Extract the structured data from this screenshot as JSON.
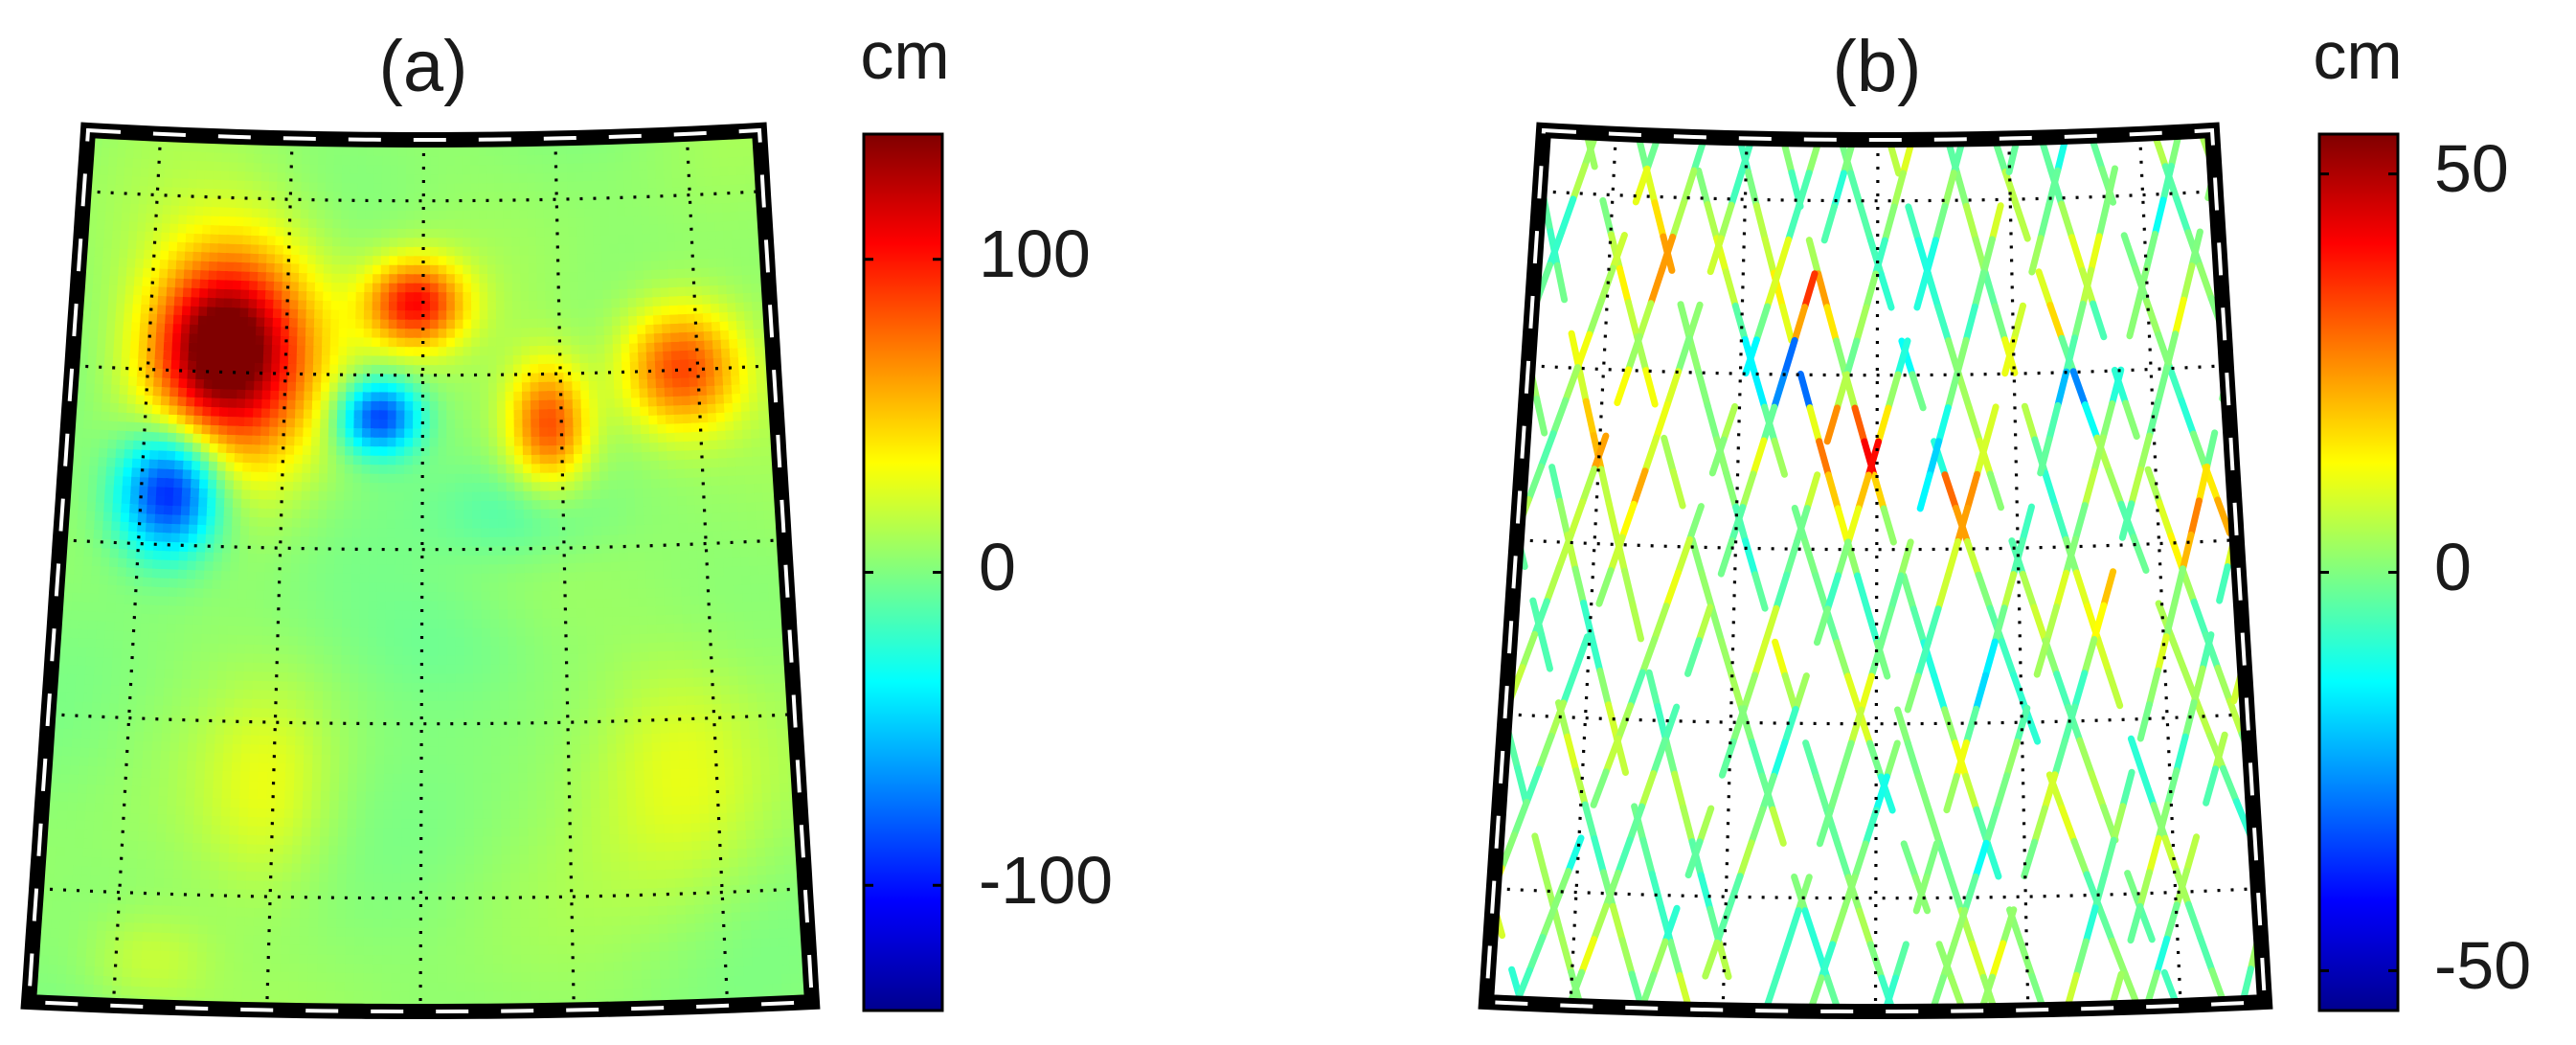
{
  "colors": {
    "colormap": [
      "#00008f",
      "#0000ff",
      "#0080ff",
      "#00ffff",
      "#80ff80",
      "#ffff00",
      "#ff8000",
      "#ff0000",
      "#800000"
    ],
    "frame": "#000000",
    "graticule": "#000000",
    "background": "#ffffff"
  },
  "chart_data": [
    {
      "type": "heatmap",
      "title": "(a)",
      "colorbar": {
        "label": "cm",
        "range": [
          -140,
          140
        ],
        "ticks": [
          100,
          0,
          -100
        ],
        "tick_labels": [
          "100",
          "0",
          "-100"
        ]
      },
      "background_value": 5,
      "map_grid": {
        "meridians": 5,
        "parallels": 5,
        "grid": true
      },
      "anomalies": [
        {
          "x": 0.24,
          "y": 0.25,
          "value": 110,
          "sx": 0.085,
          "sy": 0.09
        },
        {
          "x": 0.2,
          "y": 0.24,
          "value": 60,
          "sx": 0.06,
          "sy": 0.06
        },
        {
          "x": 0.15,
          "y": 0.41,
          "value": -115,
          "sx": 0.05,
          "sy": 0.05
        },
        {
          "x": 0.49,
          "y": 0.19,
          "value": 95,
          "sx": 0.05,
          "sy": 0.035
        },
        {
          "x": 0.44,
          "y": 0.32,
          "value": -95,
          "sx": 0.04,
          "sy": 0.03
        },
        {
          "x": 0.68,
          "y": 0.33,
          "value": 80,
          "sx": 0.04,
          "sy": 0.05
        },
        {
          "x": 0.87,
          "y": 0.27,
          "value": 85,
          "sx": 0.06,
          "sy": 0.05
        },
        {
          "x": 0.64,
          "y": 0.43,
          "value": -20,
          "sx": 0.08,
          "sy": 0.04
        },
        {
          "x": 0.3,
          "y": 0.75,
          "value": 20,
          "sx": 0.06,
          "sy": 0.08
        },
        {
          "x": 0.85,
          "y": 0.72,
          "value": 25,
          "sx": 0.08,
          "sy": 0.1
        },
        {
          "x": 0.55,
          "y": 0.58,
          "value": -12,
          "sx": 0.1,
          "sy": 0.06
        },
        {
          "x": 0.15,
          "y": 0.95,
          "value": 18,
          "sx": 0.06,
          "sy": 0.04
        }
      ]
    },
    {
      "type": "heatmap",
      "title": "(b)",
      "colorbar": {
        "label": "cm",
        "range": [
          -55,
          55
        ],
        "ticks": [
          50,
          0,
          -50
        ],
        "tick_labels": [
          "50",
          "0",
          "-50"
        ]
      },
      "map_grid": {
        "meridians": 5,
        "parallels": 5,
        "grid": true
      },
      "track_pattern": "crossing satellite ground tracks along-track residuals",
      "hotspots": [
        {
          "x": 0.17,
          "y": 0.16,
          "value": 40
        },
        {
          "x": 0.12,
          "y": 0.34,
          "value": 45
        },
        {
          "x": 0.19,
          "y": 0.43,
          "value": 40
        },
        {
          "x": 0.39,
          "y": 0.19,
          "value": 35
        },
        {
          "x": 0.38,
          "y": 0.27,
          "value": -40
        },
        {
          "x": 0.44,
          "y": 0.34,
          "value": 40
        },
        {
          "x": 0.5,
          "y": 0.36,
          "value": 35
        },
        {
          "x": 0.56,
          "y": 0.37,
          "value": -35
        },
        {
          "x": 0.61,
          "y": 0.4,
          "value": 40
        },
        {
          "x": 0.56,
          "y": 0.23,
          "value": -30
        },
        {
          "x": 0.73,
          "y": 0.23,
          "value": 30
        },
        {
          "x": 0.78,
          "y": 0.3,
          "value": -25
        },
        {
          "x": 0.83,
          "y": 0.52,
          "value": 30
        },
        {
          "x": 0.95,
          "y": 0.46,
          "value": 25
        },
        {
          "x": 0.63,
          "y": 0.62,
          "value": -20
        }
      ]
    }
  ]
}
